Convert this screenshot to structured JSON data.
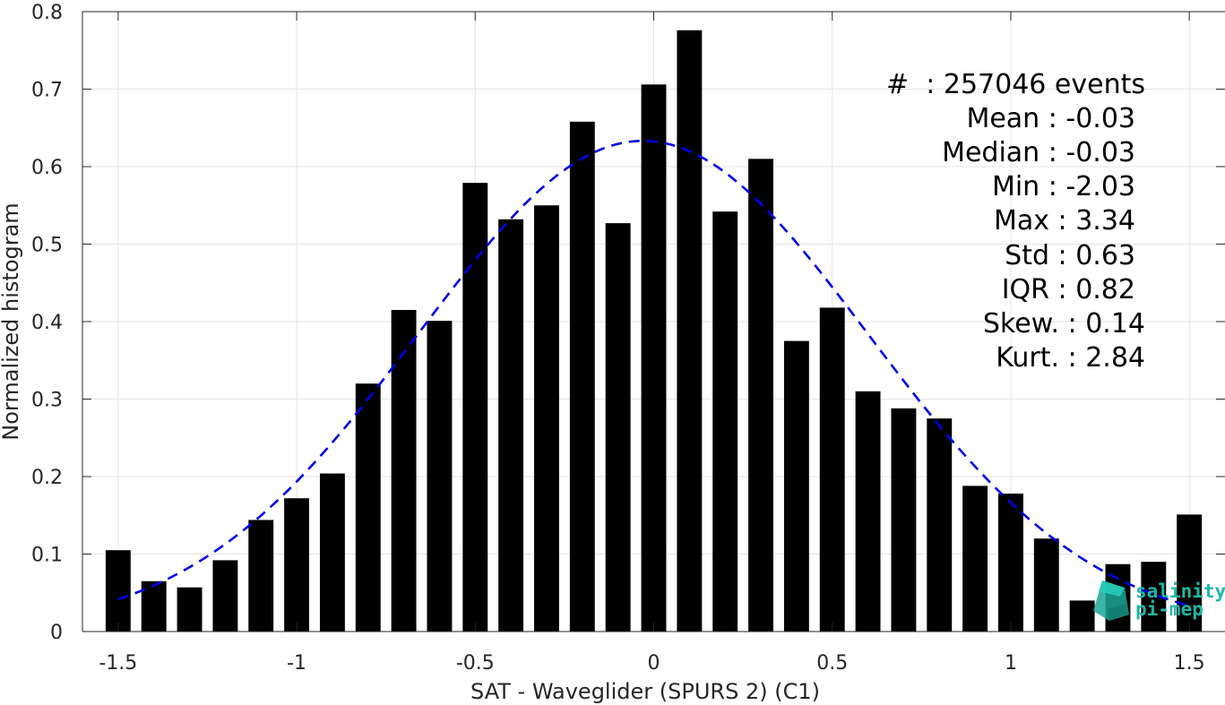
{
  "chart_data": {
    "type": "bar",
    "xlabel": "SAT - Waveglider (SPURS 2) (C1)",
    "ylabel": "Normalized histogram",
    "xlim": [
      -1.6,
      1.6
    ],
    "ylim": [
      0,
      0.8
    ],
    "xticks": [
      -1.5,
      -1,
      -0.5,
      0,
      0.5,
      1,
      1.5
    ],
    "xtick_labels": [
      "-1.5",
      "-1",
      "-0.5",
      "0",
      "0.5",
      "1",
      "1.5"
    ],
    "yticks": [
      0,
      0.1,
      0.2,
      0.3,
      0.4,
      0.5,
      0.6,
      0.7,
      0.8
    ],
    "ytick_labels": [
      "0",
      "0.1",
      "0.2",
      "0.3",
      "0.4",
      "0.5",
      "0.6",
      "0.7",
      "0.8"
    ],
    "grid": true,
    "bar_width": 0.07,
    "bins": [
      -1.5,
      -1.4,
      -1.3,
      -1.2,
      -1.1,
      -1.0,
      -0.9,
      -0.8,
      -0.7,
      -0.6,
      -0.5,
      -0.4,
      -0.3,
      -0.2,
      -0.1,
      0.0,
      0.1,
      0.2,
      0.3,
      0.4,
      0.5,
      0.6,
      0.7,
      0.8,
      0.9,
      1.0,
      1.1,
      1.2,
      1.3,
      1.4,
      1.5
    ],
    "values": [
      0.105,
      0.065,
      0.057,
      0.092,
      0.144,
      0.172,
      0.204,
      0.32,
      0.415,
      0.401,
      0.579,
      0.532,
      0.55,
      0.658,
      0.527,
      0.706,
      0.776,
      0.542,
      0.61,
      0.375,
      0.418,
      0.31,
      0.288,
      0.275,
      0.188,
      0.178,
      0.12,
      0.04,
      0.087,
      0.09,
      0.151
    ],
    "fit_curve": {
      "type": "gaussian",
      "mean": -0.03,
      "std": 0.63,
      "x_range": [
        -1.5,
        1.5
      ],
      "style": "dashed",
      "color": "#0000ee"
    },
    "bar_color": "#000000",
    "stats": [
      "#  : 257046 events",
      "Mean : -0.03",
      "Median : -0.03",
      "Min : -2.03",
      "Max : 3.34",
      "Std : 0.63",
      "IQR : 0.82",
      "Skew. : 0.14",
      "Kurt. : 2.84"
    ]
  },
  "logo": {
    "line1": "salinity",
    "line2": "pi-mep",
    "color": "#1fb7a6"
  }
}
